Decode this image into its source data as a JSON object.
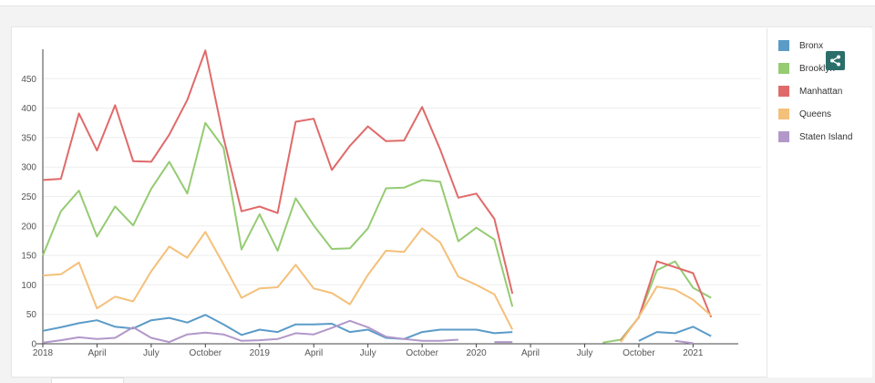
{
  "chart_data": {
    "type": "line",
    "title": "",
    "xlabel": "",
    "ylabel": "",
    "ylim": [
      0,
      500
    ],
    "yticks": [
      0,
      50,
      100,
      150,
      200,
      250,
      300,
      350,
      400,
      450
    ],
    "xlim": [
      "2018-01",
      "2021-03"
    ],
    "xticks": [
      {
        "date": "2018-01",
        "label": "2018"
      },
      {
        "date": "2018-04",
        "label": "April"
      },
      {
        "date": "2018-07",
        "label": "July"
      },
      {
        "date": "2018-10",
        "label": "October"
      },
      {
        "date": "2019-01",
        "label": "2019"
      },
      {
        "date": "2019-04",
        "label": "April"
      },
      {
        "date": "2019-07",
        "label": "July"
      },
      {
        "date": "2019-10",
        "label": "October"
      },
      {
        "date": "2020-01",
        "label": "2020"
      },
      {
        "date": "2020-04",
        "label": "April"
      },
      {
        "date": "2020-07",
        "label": "July"
      },
      {
        "date": "2020-10",
        "label": "October"
      },
      {
        "date": "2021-01",
        "label": "2021"
      }
    ],
    "grid": true,
    "legend": "right",
    "series": [
      {
        "name": "Bronx",
        "color": "#5b9bc8",
        "segments": [
          {
            "start": "2018-01",
            "values": [
              22,
              28,
              35,
              40,
              29,
              26,
              40,
              44,
              36,
              49,
              33,
              15,
              24,
              20,
              33,
              33,
              34,
              20,
              24,
              10,
              8,
              20,
              24,
              24,
              24,
              18,
              20
            ]
          },
          {
            "start": "2020-10",
            "values": [
              5,
              20,
              18,
              29,
              13
            ]
          }
        ]
      },
      {
        "name": "Brooklyn",
        "color": "#95cb72",
        "segments": [
          {
            "start": "2018-01",
            "values": [
              150,
              225,
              260,
              182,
              233,
              201,
              263,
              309,
              255,
              375,
              333,
              160,
              220,
              158,
              247,
              201,
              161,
              162,
              196,
              264,
              265,
              278,
              275,
              174,
              197,
              177,
              63
            ]
          },
          {
            "start": "2020-08",
            "values": [
              2,
              7,
              45,
              125,
              140,
              95,
              78
            ]
          }
        ]
      },
      {
        "name": "Manhattan",
        "color": "#e06a6a",
        "segments": [
          {
            "start": "2018-01",
            "values": [
              278,
              280,
              391,
              328,
              405,
              310,
              309,
              355,
              414,
              498,
              350,
              225,
              233,
              222,
              377,
              382,
              295,
              336,
              369,
              344,
              345,
              402,
              330,
              248,
              255,
              212,
              85
            ]
          },
          {
            "start": "2020-09",
            "values": [
              5,
              45,
              140,
              130,
              120,
              45
            ]
          }
        ]
      },
      {
        "name": "Queens",
        "color": "#f4c07a",
        "segments": [
          {
            "start": "2018-01",
            "values": [
              116,
              118,
              138,
              60,
              80,
              72,
              123,
              165,
              146,
              190,
              135,
              78,
              94,
              96,
              134,
              94,
              86,
              67,
              117,
              158,
              156,
              196,
              172,
              114,
              100,
              84,
              24
            ]
          },
          {
            "start": "2020-09",
            "values": [
              3,
              46,
              97,
              92,
              75,
              48
            ]
          }
        ]
      },
      {
        "name": "Staten Island",
        "color": "#b298c9",
        "segments": [
          {
            "start": "2018-01",
            "values": [
              2,
              6,
              11,
              8,
              10,
              28,
              10,
              3,
              16,
              19,
              16,
              5,
              6,
              8,
              18,
              16,
              27,
              39,
              28,
              12,
              8,
              5,
              5,
              7
            ]
          },
          {
            "start": "2020-02",
            "values": [
              3,
              3
            ]
          },
          {
            "start": "2020-12",
            "values": [
              5,
              1
            ]
          }
        ]
      }
    ]
  }
}
